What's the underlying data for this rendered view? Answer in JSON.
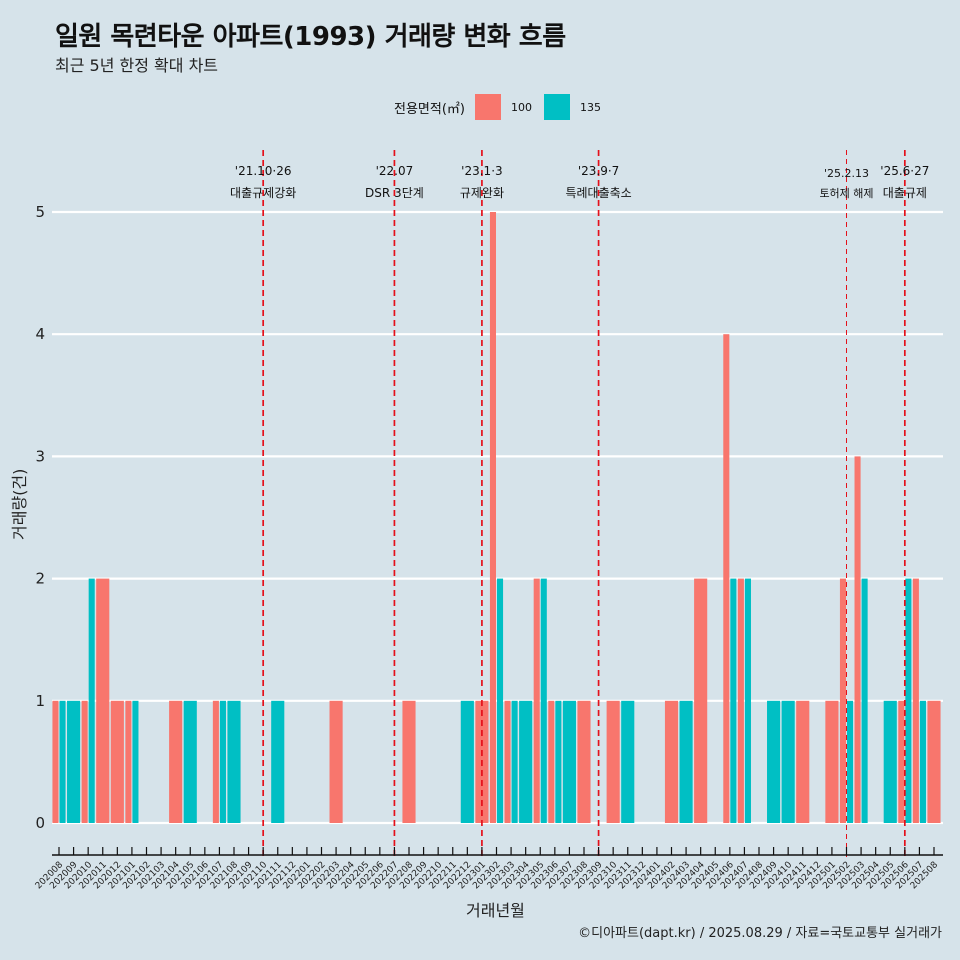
{
  "header": {
    "title": "일원 목련타운 아파트(1993) 거래량 변화 흐름",
    "subtitle": "최근 5년 한정 확대 차트"
  },
  "legend": {
    "title": "전용면적(㎡)",
    "items": [
      {
        "label": "100",
        "color": "#f8766d"
      },
      {
        "label": "135",
        "color": "#00bfc4"
      }
    ]
  },
  "caption": "©디아파트(dapt.kr) / 2025.08.29 / 자료=국토교통부 실거래가",
  "chart_data": {
    "type": "bar",
    "title": "일원 목련타운 아파트(1993) 거래량 변화 흐름",
    "subtitle": "최근 5년 한정 확대 차트",
    "xlabel": "거래년월",
    "ylabel": "거래량(건)",
    "ylim": [
      0,
      5
    ],
    "yticks": [
      0,
      1,
      2,
      3,
      4,
      5
    ],
    "grid": "horizontal",
    "legend_position": "top",
    "categories": [
      "202008",
      "202009",
      "202010",
      "202011",
      "202012",
      "202101",
      "202102",
      "202103",
      "202104",
      "202105",
      "202106",
      "202107",
      "202108",
      "202109",
      "202110",
      "202111",
      "202112",
      "202201",
      "202202",
      "202203",
      "202204",
      "202205",
      "202206",
      "202207",
      "202208",
      "202209",
      "202210",
      "202211",
      "202212",
      "202301",
      "202302",
      "202303",
      "202304",
      "202305",
      "202306",
      "202307",
      "202308",
      "202309",
      "202310",
      "202311",
      "202312",
      "202401",
      "202402",
      "202403",
      "202404",
      "202405",
      "202406",
      "202407",
      "202408",
      "202409",
      "202410",
      "202411",
      "202412",
      "202501",
      "202502",
      "202503",
      "202504",
      "202505",
      "202506",
      "202507",
      "202508"
    ],
    "series": [
      {
        "name": "100",
        "color": "#f8766d",
        "values": [
          1,
          0,
          1,
          2,
          1,
          1,
          0,
          0,
          1,
          0,
          0,
          1,
          0,
          0,
          0,
          0,
          0,
          0,
          0,
          1,
          0,
          0,
          0,
          0,
          1,
          0,
          0,
          0,
          0,
          1,
          5,
          1,
          0,
          2,
          1,
          0,
          1,
          0,
          1,
          0,
          0,
          0,
          1,
          0,
          2,
          0,
          4,
          2,
          0,
          0,
          0,
          1,
          0,
          1,
          2,
          3,
          0,
          0,
          1,
          2,
          1
        ]
      },
      {
        "name": "135",
        "color": "#00bfc4",
        "values": [
          1,
          1,
          2,
          0,
          0,
          1,
          0,
          0,
          0,
          1,
          0,
          1,
          1,
          0,
          0,
          1,
          0,
          0,
          0,
          0,
          0,
          0,
          0,
          0,
          0,
          0,
          0,
          0,
          1,
          0,
          2,
          1,
          1,
          2,
          1,
          1,
          0,
          0,
          0,
          1,
          0,
          0,
          0,
          1,
          0,
          0,
          2,
          2,
          0,
          1,
          1,
          0,
          0,
          0,
          1,
          2,
          0,
          1,
          2,
          1,
          0
        ]
      }
    ],
    "annotations": [
      {
        "category": "202110",
        "date": "'21.10·26",
        "label": "대출규제강화",
        "style": "major"
      },
      {
        "category": "202207",
        "date": "'22.07",
        "label": "DSR 3단계",
        "style": "major"
      },
      {
        "category": "202301",
        "date": "'23.1·3",
        "label": "규제완화",
        "style": "major"
      },
      {
        "category": "202309",
        "date": "'23.9·7",
        "label": "특례대출축소",
        "style": "major"
      },
      {
        "category": "202502",
        "date": "'25.2.13",
        "label": "토허제 해제",
        "style": "minor"
      },
      {
        "category": "202506",
        "date": "'25.6·27",
        "label": "대출규제",
        "style": "major"
      }
    ],
    "annotation_line_color": "#e4101a"
  }
}
